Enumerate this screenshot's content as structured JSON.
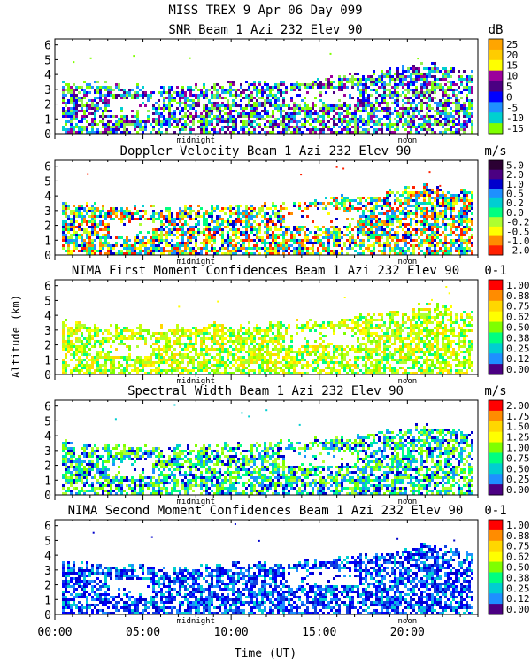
{
  "header": {
    "line1": "MISS TREX    9 Apr 06 Day 099"
  },
  "shared": {
    "ylabel": "Altitude (km)",
    "xlabel": "Time (UT)",
    "y_ticks": [
      "0",
      "1",
      "2",
      "3",
      "4",
      "5",
      "6"
    ],
    "x_ticks": [
      "00:00",
      "05:00",
      "10:00",
      "15:00",
      "20:00"
    ],
    "x_tick_values_hours": [
      0,
      5,
      10,
      15,
      20
    ],
    "markers": [
      {
        "label": "midnight",
        "hour": 8
      },
      {
        "label": "noon",
        "hour": 20
      }
    ],
    "xlim_hours": [
      0,
      24
    ],
    "ylim_km": [
      0,
      6.4
    ]
  },
  "chart_data": [
    {
      "type": "heatmap",
      "title": "SNR Beam 1 Azi 232 Elev 90",
      "unit": "dB",
      "colorbar_labels": [
        "25",
        "20",
        "15",
        "10",
        "5",
        "0",
        "-5",
        "-10",
        "-15"
      ],
      "colorbar_colors": [
        "#ffa500",
        "#ffcc00",
        "#ffff00",
        "#9b009b",
        "#4b0082",
        "#0000ff",
        "#1f8fff",
        "#00d0d0",
        "#7fff00"
      ],
      "palette": [
        "#7fff00",
        "#90ee50",
        "#00d0d0",
        "#1f8fff",
        "#0000ff",
        "#4b0082",
        "#9b009b"
      ],
      "layer_top_km": [
        3.4,
        3.2,
        3.0,
        3.2,
        3.3,
        3.6,
        3.8,
        4.2,
        4.6,
        4.0
      ],
      "layer_hours": [
        0,
        3,
        6,
        9,
        12,
        15,
        17,
        19,
        21,
        24
      ]
    },
    {
      "type": "heatmap",
      "title": "Doppler Velocity Beam 1 Azi 232 Elev 90",
      "unit": "m/s",
      "colorbar_labels": [
        "5.0",
        "2.0",
        "1.0",
        "0.5",
        "0.2",
        "0.0",
        "-0.2",
        "-0.5",
        "-1.0",
        "-2.0"
      ],
      "colorbar_colors": [
        "#2b0033",
        "#4b0082",
        "#0000cd",
        "#1e90ff",
        "#00ced1",
        "#00ff7f",
        "#adff2f",
        "#ffff00",
        "#ff8c00",
        "#ff2000"
      ],
      "palette": [
        "#ff2000",
        "#ff8c00",
        "#ffff00",
        "#adff2f",
        "#00ff7f",
        "#00ced1",
        "#1e90ff",
        "#0000cd"
      ],
      "layer_top_km": [
        3.4,
        3.2,
        3.0,
        3.2,
        3.3,
        3.6,
        3.8,
        4.2,
        4.6,
        4.0
      ],
      "layer_hours": [
        0,
        3,
        6,
        9,
        12,
        15,
        17,
        19,
        21,
        24
      ]
    },
    {
      "type": "heatmap",
      "title": "NIMA First Moment Confidences Beam 1 Azi 232 Elev 90",
      "unit": "0-1",
      "colorbar_labels": [
        "1.00",
        "0.88",
        "0.75",
        "0.62",
        "0.50",
        "0.38",
        "0.25",
        "0.12",
        "0.00"
      ],
      "colorbar_colors": [
        "#ff0000",
        "#ff8c00",
        "#ffd700",
        "#ffff00",
        "#7fff00",
        "#00ff7f",
        "#00ced1",
        "#1e90ff",
        "#4b0082"
      ],
      "palette": [
        "#ffff00",
        "#adff2f",
        "#7fff00",
        "#ffd700",
        "#00ff7f",
        "#c8ff00"
      ],
      "layer_top_km": [
        3.4,
        3.2,
        3.0,
        3.2,
        3.3,
        3.6,
        3.8,
        4.2,
        4.6,
        4.0
      ],
      "layer_hours": [
        0,
        3,
        6,
        9,
        12,
        15,
        17,
        19,
        21,
        24
      ]
    },
    {
      "type": "heatmap",
      "title": "Spectral Width Beam 1 Azi 232 Elev 90",
      "unit": "m/s",
      "colorbar_labels": [
        "2.00",
        "1.75",
        "1.50",
        "1.25",
        "1.00",
        "0.75",
        "0.50",
        "0.25",
        "0.00"
      ],
      "colorbar_colors": [
        "#ff0000",
        "#ff8c00",
        "#ffd700",
        "#ffff00",
        "#7fff00",
        "#00ff7f",
        "#00ced1",
        "#1e90ff",
        "#4b0082"
      ],
      "palette": [
        "#00ced1",
        "#1e90ff",
        "#00ff7f",
        "#7fff00",
        "#0000cd",
        "#adff2f"
      ],
      "layer_top_km": [
        3.4,
        3.2,
        3.0,
        3.2,
        3.3,
        3.6,
        3.8,
        4.2,
        4.6,
        4.0
      ],
      "layer_hours": [
        0,
        3,
        6,
        9,
        12,
        15,
        17,
        19,
        21,
        24
      ]
    },
    {
      "type": "heatmap",
      "title": "NIMA Second Moment Confidences Beam 1 Azi 232 Elev 90",
      "unit": "0-1",
      "colorbar_labels": [
        "1.00",
        "0.88",
        "0.75",
        "0.62",
        "0.50",
        "0.38",
        "0.25",
        "0.12",
        "0.00"
      ],
      "colorbar_colors": [
        "#ff0000",
        "#ff8c00",
        "#ffd700",
        "#ffff00",
        "#7fff00",
        "#00ff7f",
        "#00ced1",
        "#1e90ff",
        "#4b0082"
      ],
      "palette": [
        "#0000cd",
        "#1e90ff",
        "#0000ff",
        "#00ced1",
        "#1040e0"
      ],
      "layer_top_km": [
        3.4,
        3.2,
        3.0,
        3.2,
        3.3,
        3.6,
        3.8,
        4.2,
        4.6,
        4.0
      ],
      "layer_hours": [
        0,
        3,
        6,
        9,
        12,
        15,
        17,
        19,
        21,
        24
      ]
    }
  ]
}
